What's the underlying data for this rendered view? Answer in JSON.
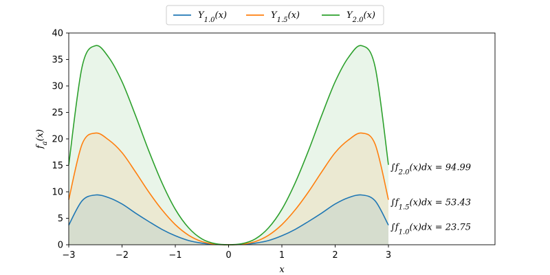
{
  "chart_data": {
    "type": "area",
    "title": "",
    "xlabel": "x",
    "ylabel": "f_a(x)",
    "xlim": [
      -3,
      3
    ],
    "ylim": [
      0,
      40
    ],
    "xticks": [
      -3,
      -2,
      -1,
      0,
      1,
      2,
      3
    ],
    "xtick_labels": [
      "−3",
      "−2",
      "−1",
      "0",
      "1",
      "2",
      "3"
    ],
    "yticks": [
      0,
      5,
      10,
      15,
      20,
      25,
      30,
      35,
      40
    ],
    "ytick_labels": [
      "0",
      "5",
      "10",
      "15",
      "20",
      "25",
      "30",
      "35",
      "40"
    ],
    "grid": false,
    "legend_position": "top-center",
    "x": [
      -3.0,
      -2.75,
      -2.5,
      -2.25,
      -2.0,
      -1.75,
      -1.5,
      -1.25,
      -1.0,
      -0.75,
      -0.5,
      -0.25,
      0.0,
      0.25,
      0.5,
      0.75,
      1.0,
      1.25,
      1.5,
      1.75,
      2.0,
      2.25,
      2.5,
      2.75,
      3.0
    ],
    "series": [
      {
        "name": "Y_{1.0}(x)",
        "color": "#1f77b4",
        "values": [
          3.7,
          8.3,
          9.4,
          8.9,
          7.7,
          6.0,
          4.4,
          2.9,
          1.7,
          0.8,
          0.3,
          0.05,
          0.0,
          0.05,
          0.3,
          0.8,
          1.7,
          2.9,
          4.4,
          6.0,
          7.7,
          8.9,
          9.4,
          8.3,
          3.7
        ],
        "integral_label": "∫f_{1.0}(x)dx = 23.75"
      },
      {
        "name": "Y_{1.5}(x)",
        "color": "#ff7f0e",
        "values": [
          8.5,
          19.0,
          21.1,
          19.8,
          17.4,
          13.8,
          10.0,
          6.6,
          3.8,
          1.8,
          0.6,
          0.1,
          0.0,
          0.1,
          0.6,
          1.8,
          3.8,
          6.6,
          10.0,
          13.8,
          17.4,
          19.8,
          21.1,
          19.0,
          8.5
        ],
        "integral_label": "∫f_{1.5}(x)dx = 53.43"
      },
      {
        "name": "Y_{2.0}(x)",
        "color": "#2ca02c",
        "values": [
          15.1,
          33.6,
          37.6,
          35.4,
          30.8,
          24.5,
          17.8,
          11.7,
          6.7,
          3.2,
          1.1,
          0.2,
          0.0,
          0.2,
          1.1,
          3.2,
          6.7,
          11.7,
          17.8,
          24.5,
          30.8,
          35.4,
          37.6,
          33.6,
          15.1
        ],
        "integral_label": "∫f_{2.0}(x)dx = 94.99"
      }
    ]
  }
}
